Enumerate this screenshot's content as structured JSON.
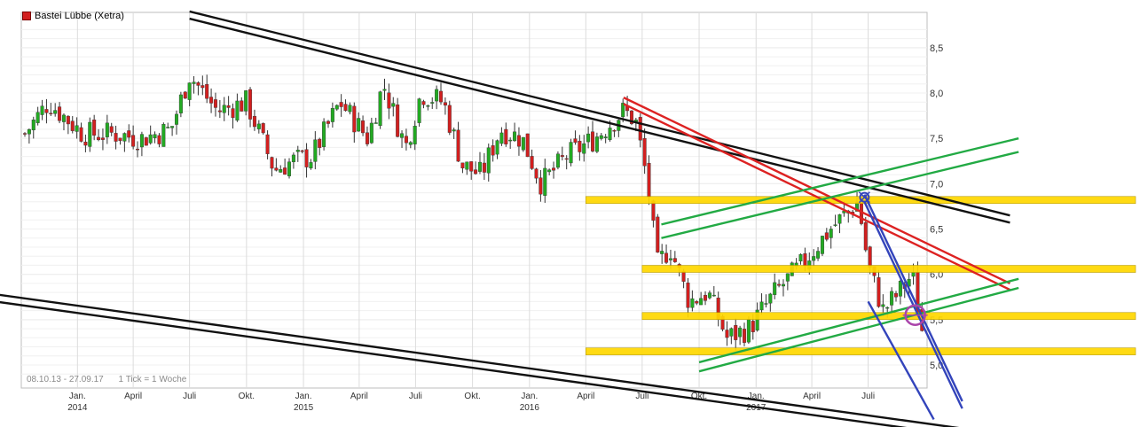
{
  "legend": {
    "label": "Bastei Lübbe (Xetra)",
    "color": "#d21f1f"
  },
  "info": {
    "range": "08.10.13 - 27.09.17",
    "interval": "1 Tick = 1 Woche"
  },
  "chart_data": {
    "type": "candlestick",
    "title": "Bastei Lübbe (Xetra)",
    "x_range": [
      "2013-10-08",
      "2017-09-27"
    ],
    "ylim": [
      4.8,
      8.75
    ],
    "y_ticks": [
      5.0,
      5.5,
      6.0,
      6.5,
      7.0,
      7.5,
      8.0,
      8.5
    ],
    "y_tick_labels": [
      "5,0",
      "5,5",
      "6,0",
      "6,5",
      "7,0",
      "7,5",
      "8,0",
      "8,5"
    ],
    "x_ticks": [
      {
        "date": "2014-01-01",
        "label": "Jan.",
        "year": "2014"
      },
      {
        "date": "2014-04-01",
        "label": "April",
        "year": ""
      },
      {
        "date": "2014-07-01",
        "label": "Juli",
        "year": ""
      },
      {
        "date": "2014-10-01",
        "label": "Okt.",
        "year": ""
      },
      {
        "date": "2015-01-01",
        "label": "Jan.",
        "year": "2015"
      },
      {
        "date": "2015-04-01",
        "label": "April",
        "year": ""
      },
      {
        "date": "2015-07-01",
        "label": "Juli",
        "year": ""
      },
      {
        "date": "2015-10-01",
        "label": "Okt.",
        "year": ""
      },
      {
        "date": "2016-01-01",
        "label": "Jan.",
        "year": "2016"
      },
      {
        "date": "2016-04-01",
        "label": "April",
        "year": ""
      },
      {
        "date": "2016-07-01",
        "label": "Juli",
        "year": ""
      },
      {
        "date": "2016-10-01",
        "label": "Okt.",
        "year": ""
      },
      {
        "date": "2017-01-01",
        "label": "Jan.",
        "year": "2017"
      },
      {
        "date": "2017-04-01",
        "label": "April",
        "year": ""
      },
      {
        "date": "2017-07-01",
        "label": "Juli",
        "year": ""
      }
    ],
    "grid": true,
    "colors": {
      "up": "#22aa22",
      "down": "#d21f1f"
    },
    "closes": [
      {
        "date": "2013-10-08",
        "close": 7.55
      },
      {
        "date": "2013-11-15",
        "close": 7.9
      },
      {
        "date": "2014-01-10",
        "close": 7.55
      },
      {
        "date": "2014-03-01",
        "close": 7.55
      },
      {
        "date": "2014-04-15",
        "close": 7.5
      },
      {
        "date": "2014-06-01",
        "close": 7.6
      },
      {
        "date": "2014-07-01",
        "close": 8.2
      },
      {
        "date": "2014-08-15",
        "close": 7.8
      },
      {
        "date": "2014-10-01",
        "close": 7.9
      },
      {
        "date": "2014-11-15",
        "close": 7.15
      },
      {
        "date": "2014-12-15",
        "close": 7.25
      },
      {
        "date": "2015-01-15",
        "close": 7.3
      },
      {
        "date": "2015-03-01",
        "close": 7.9
      },
      {
        "date": "2015-04-15",
        "close": 7.5
      },
      {
        "date": "2015-05-10",
        "close": 8.1
      },
      {
        "date": "2015-06-15",
        "close": 7.4
      },
      {
        "date": "2015-07-10",
        "close": 8.0
      },
      {
        "date": "2015-08-15",
        "close": 7.9
      },
      {
        "date": "2015-09-15",
        "close": 7.2
      },
      {
        "date": "2015-10-15",
        "close": 7.1
      },
      {
        "date": "2015-11-15",
        "close": 7.6
      },
      {
        "date": "2015-12-20",
        "close": 7.5
      },
      {
        "date": "2016-01-20",
        "close": 7.0
      },
      {
        "date": "2016-03-01",
        "close": 7.3
      },
      {
        "date": "2016-04-15",
        "close": 7.5
      },
      {
        "date": "2016-06-01",
        "close": 7.8
      },
      {
        "date": "2016-06-20",
        "close": 7.7
      },
      {
        "date": "2016-07-10",
        "close": 7.0
      },
      {
        "date": "2016-07-25",
        "close": 6.1
      },
      {
        "date": "2016-08-15",
        "close": 6.3
      },
      {
        "date": "2016-09-15",
        "close": 5.7
      },
      {
        "date": "2016-10-15",
        "close": 5.8
      },
      {
        "date": "2016-11-15",
        "close": 5.3
      },
      {
        "date": "2016-12-20",
        "close": 5.4
      },
      {
        "date": "2017-02-01",
        "close": 5.8
      },
      {
        "date": "2017-03-15",
        "close": 6.1
      },
      {
        "date": "2017-05-01",
        "close": 6.5
      },
      {
        "date": "2017-06-15",
        "close": 6.8
      },
      {
        "date": "2017-07-01",
        "close": 6.1
      },
      {
        "date": "2017-07-25",
        "close": 5.6
      },
      {
        "date": "2017-08-20",
        "close": 5.8
      },
      {
        "date": "2017-09-10",
        "close": 6.0
      },
      {
        "date": "2017-09-27",
        "close": 5.35
      }
    ],
    "trend_lines": [
      {
        "color": "#111111",
        "points": [
          [
            "2014-07-01",
            8.9
          ],
          [
            "2018-02-15",
            6.65
          ]
        ]
      },
      {
        "color": "#111111",
        "points": [
          [
            "2014-07-01",
            8.82
          ],
          [
            "2018-02-15",
            6.57
          ]
        ]
      },
      {
        "color": "#111111",
        "points": [
          [
            "2013-01-01",
            6.0
          ],
          [
            "2018-03-15",
            4.2
          ]
        ]
      },
      {
        "color": "#111111",
        "points": [
          [
            "2013-01-01",
            5.92
          ],
          [
            "2018-03-15",
            4.12
          ]
        ]
      },
      {
        "color": "#dd2222",
        "points": [
          [
            "2016-06-01",
            7.95
          ],
          [
            "2018-02-15",
            5.9
          ]
        ]
      },
      {
        "color": "#dd2222",
        "points": [
          [
            "2016-06-01",
            7.88
          ],
          [
            "2018-02-15",
            5.83
          ]
        ]
      },
      {
        "color": "#22aa44",
        "points": [
          [
            "2016-08-01",
            6.55
          ],
          [
            "2018-03-01",
            7.5
          ]
        ]
      },
      {
        "color": "#22aa44",
        "points": [
          [
            "2016-08-01",
            6.4
          ],
          [
            "2018-03-01",
            7.35
          ]
        ]
      },
      {
        "color": "#22aa44",
        "points": [
          [
            "2016-10-01",
            5.03
          ],
          [
            "2018-03-01",
            5.95
          ]
        ]
      },
      {
        "color": "#22aa44",
        "points": [
          [
            "2016-10-01",
            4.93
          ],
          [
            "2018-03-01",
            5.85
          ]
        ]
      },
      {
        "color": "#3344bb",
        "points": [
          [
            "2017-06-25",
            6.88
          ],
          [
            "2017-11-30",
            4.6
          ]
        ]
      },
      {
        "color": "#3344bb",
        "points": [
          [
            "2017-06-25",
            6.8
          ],
          [
            "2017-11-30",
            4.52
          ]
        ]
      },
      {
        "color": "#3344bb",
        "points": [
          [
            "2017-07-01",
            5.7
          ],
          [
            "2017-10-15",
            4.4
          ]
        ]
      }
    ],
    "horizontal_bands": [
      {
        "from": "2016-04-01",
        "level": 6.82
      },
      {
        "from": "2016-07-01",
        "level": 6.06
      },
      {
        "from": "2016-07-01",
        "level": 5.54
      },
      {
        "from": "2016-04-01",
        "level": 5.15
      }
    ],
    "markers": [
      {
        "type": "circle",
        "date": "2017-09-15",
        "y": 5.55,
        "color": "#aa44aa"
      },
      {
        "type": "crosshair",
        "date": "2017-06-25",
        "y": 6.85,
        "color": "#3344bb"
      }
    ]
  }
}
